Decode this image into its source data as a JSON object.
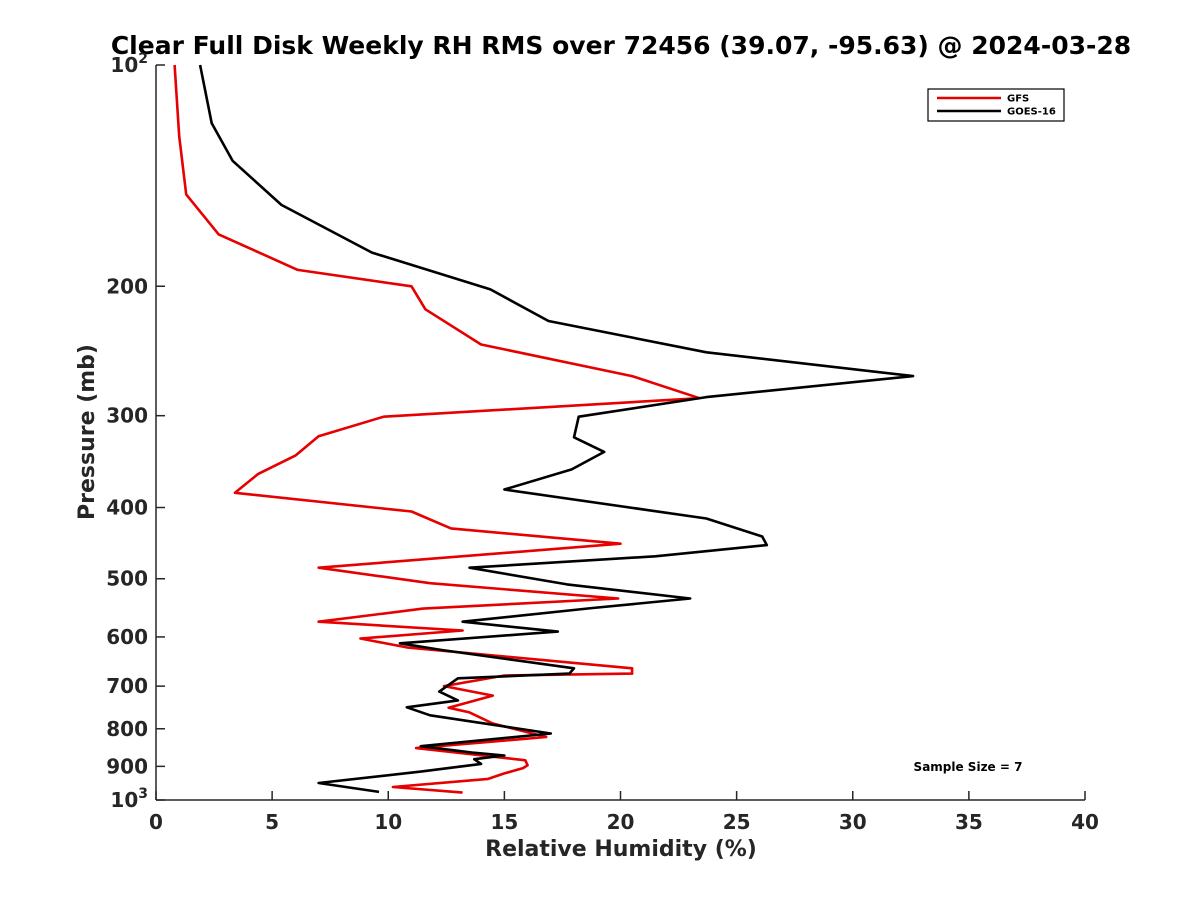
{
  "chart_data": {
    "type": "line",
    "title": "Clear Full Disk Weekly RH RMS over 72456 (39.07, -95.63) @ 2024-03-28",
    "xlabel": "Relative Humidity (%)",
    "ylabel": "Pressure (mb)",
    "xlim": [
      0,
      40
    ],
    "ylim": [
      100,
      1000
    ],
    "yscale": "log",
    "yreversed": true,
    "x_ticks": [
      0,
      5,
      10,
      15,
      20,
      25,
      30,
      35,
      40
    ],
    "x_tick_labels": [
      "0",
      "5",
      "10",
      "15",
      "20",
      "25",
      "30",
      "35",
      "40"
    ],
    "y_ticks": [
      200,
      300,
      400,
      500,
      600,
      700,
      800,
      900
    ],
    "y_tick_labels": [
      "200",
      "300",
      "400",
      "500",
      "600",
      "700",
      "800",
      "900"
    ],
    "y_end_ticks": [
      {
        "value": 100,
        "base": "10",
        "exp": "2"
      },
      {
        "value": 1000,
        "base": "10",
        "exp": "3"
      }
    ],
    "grid": false,
    "legend_position": "top-right",
    "series": [
      {
        "name": "GFS",
        "color": "#e60000",
        "points": [
          [
            0.8,
            100
          ],
          [
            1.0,
            125
          ],
          [
            1.3,
            150
          ],
          [
            2.7,
            170
          ],
          [
            6.1,
            190
          ],
          [
            11.0,
            200
          ],
          [
            11.6,
            215
          ],
          [
            14.0,
            240
          ],
          [
            20.5,
            265
          ],
          [
            23.4,
            284
          ],
          [
            9.8,
            301
          ],
          [
            7.0,
            320
          ],
          [
            6.0,
            340
          ],
          [
            4.4,
            360
          ],
          [
            3.4,
            382
          ],
          [
            11.0,
            405
          ],
          [
            12.7,
            427
          ],
          [
            20.0,
            448
          ],
          [
            7.0,
            483
          ],
          [
            11.8,
            507
          ],
          [
            19.9,
            532
          ],
          [
            11.5,
            549
          ],
          [
            7.0,
            572
          ],
          [
            13.2,
            588
          ],
          [
            8.8,
            603
          ],
          [
            10.8,
            620
          ],
          [
            20.5,
            662
          ],
          [
            20.5,
            673
          ],
          [
            15.0,
            677
          ],
          [
            12.4,
            700
          ],
          [
            14.5,
            721
          ],
          [
            12.6,
            749
          ],
          [
            13.5,
            760
          ],
          [
            14.5,
            787
          ],
          [
            16.8,
            821
          ],
          [
            11.2,
            850
          ],
          [
            15.9,
            883
          ],
          [
            16.0,
            897
          ],
          [
            15.8,
            905
          ],
          [
            15.0,
            920
          ],
          [
            14.3,
            936
          ],
          [
            10.2,
            960
          ],
          [
            13.2,
            977
          ]
        ]
      },
      {
        "name": "GOES-16",
        "color": "#000000",
        "points": [
          [
            1.9,
            100
          ],
          [
            2.4,
            120
          ],
          [
            3.3,
            135
          ],
          [
            5.4,
            155
          ],
          [
            9.3,
            180
          ],
          [
            14.4,
            202
          ],
          [
            16.9,
            223
          ],
          [
            23.7,
            246
          ],
          [
            32.6,
            265
          ],
          [
            23.7,
            283
          ],
          [
            18.2,
            301
          ],
          [
            18.0,
            321
          ],
          [
            19.3,
            336
          ],
          [
            17.9,
            355
          ],
          [
            15.0,
            378
          ],
          [
            23.7,
            414
          ],
          [
            26.1,
            438
          ],
          [
            26.3,
            450
          ],
          [
            21.5,
            466
          ],
          [
            13.5,
            483
          ],
          [
            17.7,
            509
          ],
          [
            23.0,
            532
          ],
          [
            18.8,
            548
          ],
          [
            13.2,
            572
          ],
          [
            17.3,
            590
          ],
          [
            10.5,
            612
          ],
          [
            12.3,
            625
          ],
          [
            18.0,
            662
          ],
          [
            17.8,
            673
          ],
          [
            13.0,
            683
          ],
          [
            12.2,
            712
          ],
          [
            13.0,
            732
          ],
          [
            10.8,
            748
          ],
          [
            11.8,
            767
          ],
          [
            17.0,
            812
          ],
          [
            11.4,
            845
          ],
          [
            13.6,
            862
          ],
          [
            15.0,
            870
          ],
          [
            13.7,
            880
          ],
          [
            14.0,
            893
          ],
          [
            11.4,
            915
          ],
          [
            7.0,
            948
          ],
          [
            9.6,
            975
          ]
        ]
      }
    ],
    "annotations": [
      "Sample Size = 7"
    ]
  }
}
